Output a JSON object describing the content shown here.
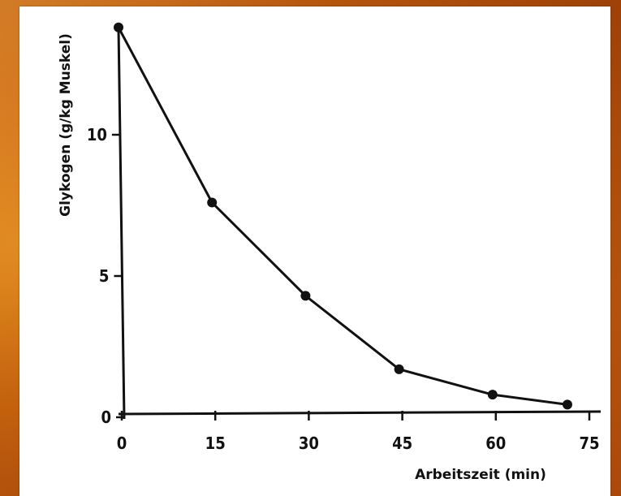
{
  "chart_data": {
    "type": "line",
    "xlabel": "Arbeitszeit (min)",
    "ylabel": "Glykogen (g/kg Muskel)",
    "xlim": [
      0,
      75
    ],
    "ylim": [
      0,
      14
    ],
    "x_ticks": [
      "0",
      "15",
      "30",
      "45",
      "60",
      "75"
    ],
    "y_ticks": [
      "0",
      "5",
      "10"
    ],
    "grid": false,
    "series": [
      {
        "x": [
          0,
          15,
          30,
          45,
          60,
          72
        ],
        "y": [
          13.8,
          7.6,
          4.3,
          1.7,
          0.8,
          0.45
        ]
      }
    ]
  }
}
